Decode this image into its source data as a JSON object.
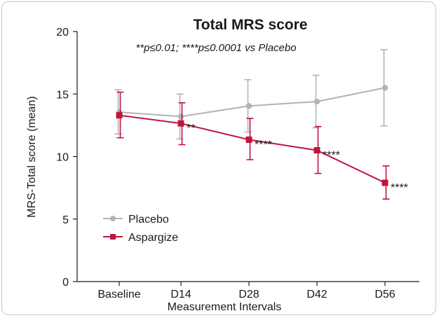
{
  "chart_data": {
    "type": "line",
    "title": "Total MRS score",
    "subtitle": "**p≤0.01; ****p≤0.0001 vs Placebo",
    "xlabel": "Measurement Intervals",
    "ylabel": "MRS-Total score (mean)",
    "categories": [
      "Baseline",
      "D14",
      "D28",
      "D42",
      "D56"
    ],
    "ylim": [
      0,
      20
    ],
    "yticks": [
      "0",
      "5",
      "10",
      "15",
      "20"
    ],
    "grid": false,
    "legend_position": "bottom-left",
    "series": [
      {
        "name": "Placebo",
        "color": "#b3b3b3",
        "marker": "circle",
        "values": [
          13.55,
          13.2,
          14.05,
          14.4,
          15.5
        ],
        "error_low": [
          11.8,
          11.4,
          11.95,
          12.3,
          12.45
        ],
        "error_high": [
          15.35,
          15.0,
          16.15,
          16.5,
          18.55
        ]
      },
      {
        "name": "Aspargize",
        "color": "#c0143c",
        "marker": "square",
        "values": [
          13.3,
          12.65,
          11.35,
          10.5,
          7.9
        ],
        "error_low": [
          11.5,
          10.95,
          9.75,
          8.65,
          6.6
        ],
        "error_high": [
          15.15,
          14.3,
          13.05,
          12.4,
          9.25
        ],
        "annotations": [
          "",
          "**",
          "****",
          "****",
          "****"
        ]
      }
    ]
  }
}
